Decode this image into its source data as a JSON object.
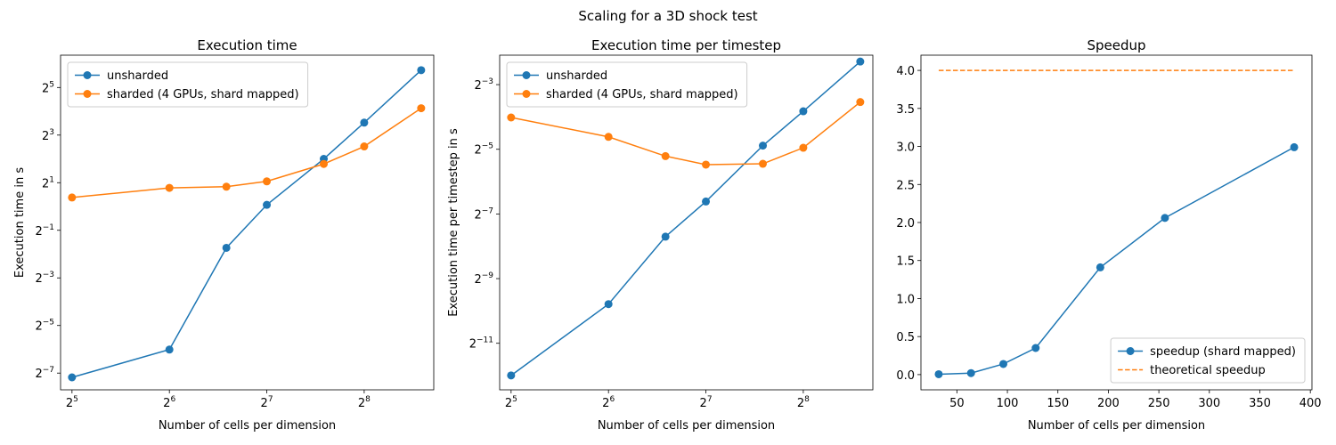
{
  "figure": {
    "suptitle": "Scaling for a 3D shock test"
  },
  "colors": {
    "blue": "#1f77b4",
    "orange": "#ff7f0e"
  },
  "chart_data": [
    {
      "type": "line",
      "title": "Execution time",
      "xlabel": "Number of cells per dimension",
      "ylabel": "Execution time in s",
      "xscale": "log2",
      "yscale": "log2",
      "xlim": [
        29.5,
        420
      ],
      "ylim": [
        0.0048,
        82
      ],
      "xticks": [
        {
          "base": "2",
          "exp": "5",
          "value": 32
        },
        {
          "base": "2",
          "exp": "6",
          "value": 64
        },
        {
          "base": "2",
          "exp": "7",
          "value": 128
        },
        {
          "base": "2",
          "exp": "8",
          "value": 256
        }
      ],
      "yticks": [
        {
          "base": "2",
          "exp": "−7",
          "value": 0.0078125
        },
        {
          "base": "2",
          "exp": "−5",
          "value": 0.03125
        },
        {
          "base": "2",
          "exp": "−3",
          "value": 0.125
        },
        {
          "base": "2",
          "exp": "−1",
          "value": 0.5
        },
        {
          "base": "2",
          "exp": "1",
          "value": 2
        },
        {
          "base": "2",
          "exp": "3",
          "value": 8
        },
        {
          "base": "2",
          "exp": "5",
          "value": 32
        }
      ],
      "legend_loc": "upper-left",
      "series": [
        {
          "name": "unsharded",
          "color": "#1f77b4",
          "marker": "circle",
          "linestyle": "solid",
          "x": [
            32,
            64,
            96,
            128,
            192,
            256,
            384
          ],
          "y": [
            0.0069,
            0.0155,
            0.3,
            1.05,
            4.0,
            11.5,
            53
          ]
        },
        {
          "name": "sharded (4 GPUs, shard mapped)",
          "color": "#ff7f0e",
          "marker": "circle",
          "linestyle": "solid",
          "x": [
            32,
            64,
            96,
            128,
            192,
            256,
            384
          ],
          "y": [
            1.3,
            1.72,
            1.78,
            2.08,
            3.45,
            5.75,
            17.5
          ]
        }
      ]
    },
    {
      "type": "line",
      "title": "Execution time per timestep",
      "xlabel": "Number of cells per dimension",
      "ylabel": "Execution time per timestep in s",
      "xscale": "log2",
      "yscale": "log2",
      "xlim": [
        29.5,
        420
      ],
      "ylim": [
        0.00018,
        0.235
      ],
      "xticks": [
        {
          "base": "2",
          "exp": "5",
          "value": 32
        },
        {
          "base": "2",
          "exp": "6",
          "value": 64
        },
        {
          "base": "2",
          "exp": "7",
          "value": 128
        },
        {
          "base": "2",
          "exp": "8",
          "value": 256
        }
      ],
      "yticks": [
        {
          "base": "2",
          "exp": "−11",
          "value": 0.00048828125
        },
        {
          "base": "2",
          "exp": "−9",
          "value": 0.001953125
        },
        {
          "base": "2",
          "exp": "−7",
          "value": 0.0078125
        },
        {
          "base": "2",
          "exp": "−5",
          "value": 0.03125
        },
        {
          "base": "2",
          "exp": "−3",
          "value": 0.125
        }
      ],
      "legend_loc": "upper-left",
      "series": [
        {
          "name": "unsharded",
          "color": "#1f77b4",
          "marker": "circle",
          "linestyle": "solid",
          "x": [
            32,
            64,
            96,
            128,
            192,
            256,
            384
          ],
          "y": [
            0.000245,
            0.00113,
            0.0048,
            0.0102,
            0.0338,
            0.0706,
            0.205
          ]
        },
        {
          "name": "sharded (4 GPUs, shard mapped)",
          "color": "#ff7f0e",
          "marker": "circle",
          "linestyle": "solid",
          "x": [
            32,
            64,
            96,
            128,
            192,
            256,
            384
          ],
          "y": [
            0.0618,
            0.0408,
            0.027,
            0.0225,
            0.0229,
            0.0323,
            0.086
          ]
        }
      ]
    },
    {
      "type": "line",
      "title": "Speedup",
      "xlabel": "Number of cells per dimension",
      "ylabel": "",
      "xscale": "linear",
      "yscale": "linear",
      "xlim": [
        14.4,
        401.6
      ],
      "ylim": [
        -0.2,
        4.2
      ],
      "xticks": [
        {
          "label": "50",
          "value": 50
        },
        {
          "label": "100",
          "value": 100
        },
        {
          "label": "150",
          "value": 150
        },
        {
          "label": "200",
          "value": 200
        },
        {
          "label": "250",
          "value": 250
        },
        {
          "label": "300",
          "value": 300
        },
        {
          "label": "350",
          "value": 350
        },
        {
          "label": "400",
          "value": 400
        }
      ],
      "yticks": [
        {
          "label": "0.0",
          "value": 0
        },
        {
          "label": "0.5",
          "value": 0.5
        },
        {
          "label": "1.0",
          "value": 1
        },
        {
          "label": "1.5",
          "value": 1.5
        },
        {
          "label": "2.0",
          "value": 2
        },
        {
          "label": "2.5",
          "value": 2.5
        },
        {
          "label": "3.0",
          "value": 3
        },
        {
          "label": "3.5",
          "value": 3.5
        },
        {
          "label": "4.0",
          "value": 4
        }
      ],
      "legend_loc": "lower-right",
      "series": [
        {
          "name": "speedup (shard mapped)",
          "color": "#1f77b4",
          "marker": "circle",
          "linestyle": "solid",
          "x": [
            32,
            64,
            96,
            128,
            192,
            256,
            384
          ],
          "y": [
            0.005,
            0.02,
            0.14,
            0.35,
            1.41,
            2.06,
            2.99
          ]
        },
        {
          "name": "theoretical speedup",
          "color": "#ff7f0e",
          "marker": "none",
          "linestyle": "dashed",
          "x": [
            32,
            384
          ],
          "y": [
            4,
            4
          ]
        }
      ]
    }
  ]
}
